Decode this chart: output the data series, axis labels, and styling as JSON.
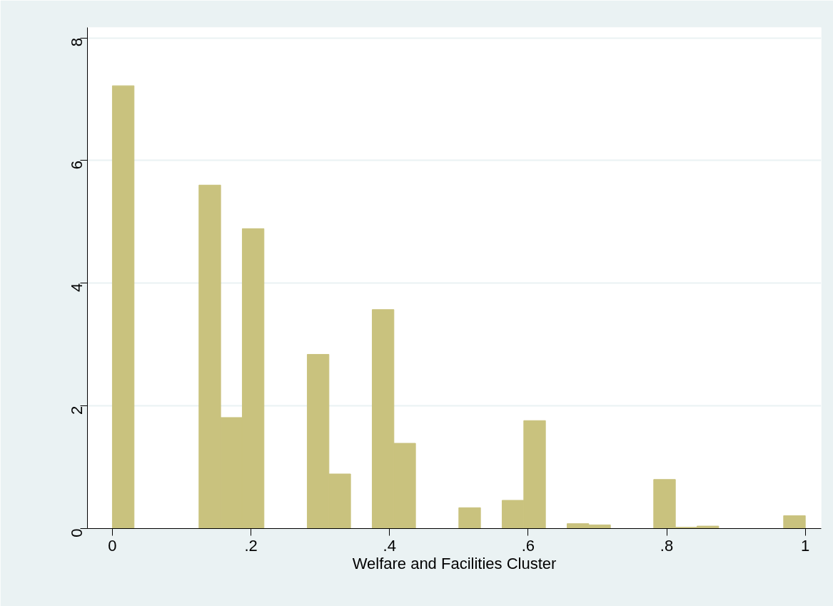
{
  "chart_data": {
    "type": "histogram",
    "xlabel": "Welfare and Facilities Cluster",
    "bins": [
      0,
      0.03125,
      0.0625,
      0.09375,
      0.125,
      0.15625,
      0.1875,
      0.21875,
      0.25,
      0.28125,
      0.3125,
      0.34375,
      0.375,
      0.40625,
      0.4375,
      0.46875,
      0.5,
      0.53125,
      0.5625,
      0.59375,
      0.625,
      0.65625,
      0.6875,
      0.71875,
      0.75,
      0.78125,
      0.8125,
      0.84375,
      0.875,
      0.90625,
      0.9375,
      0.96875,
      1
    ],
    "values": [
      7.22,
      0,
      0,
      0,
      5.6,
      1.81,
      4.89,
      0,
      0,
      2.84,
      0.89,
      0,
      3.57,
      1.39,
      0,
      0,
      0.34,
      0,
      0.46,
      1.76,
      0,
      0.08,
      0.06,
      0,
      0,
      0.8,
      0.02,
      0.04,
      0,
      0,
      0,
      0.21
    ],
    "color": "#c9c27e",
    "xlim": [
      -0.036,
      1.023
    ],
    "ylim": [
      0,
      8.17
    ],
    "xticks": [
      {
        "value": 0,
        "label": "0"
      },
      {
        "value": 0.2,
        "label": ".2"
      },
      {
        "value": 0.4,
        "label": ".4"
      },
      {
        "value": 0.6,
        "label": ".6"
      },
      {
        "value": 0.8,
        "label": ".8"
      },
      {
        "value": 1,
        "label": "1"
      }
    ],
    "yticks": [
      0,
      2,
      4,
      6,
      8
    ],
    "grid": "y"
  }
}
